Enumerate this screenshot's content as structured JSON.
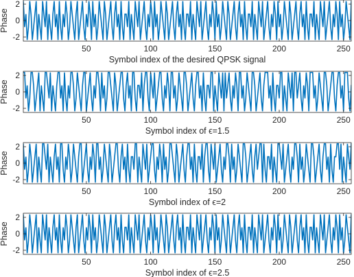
{
  "chart_data": [
    {
      "type": "line",
      "xlabel": "Symbol index of the desired QPSK signal",
      "ylabel": "Phase",
      "xlim": [
        1,
        256
      ],
      "ylim": [
        -2.5,
        2.5
      ],
      "xticks": [
        50,
        100,
        150,
        200,
        250
      ],
      "yticks": [
        -2,
        0,
        2
      ],
      "grid": false,
      "line_color": "#0072BD",
      "y": [
        2.36,
        -0.79,
        0.79,
        -2.36,
        -0.79,
        2.36,
        0.79,
        -2.36,
        -0.79,
        0.79,
        2.36,
        -2.36,
        0.79,
        -0.79,
        -2.36,
        2.36,
        0.79,
        -0.79,
        2.36,
        -2.36,
        0.79,
        -0.79,
        -2.36,
        0.79,
        2.36,
        -0.79,
        0.79,
        -2.36,
        2.36,
        -0.79,
        -2.36,
        0.79,
        -0.79,
        2.36,
        0.79,
        -2.36,
        -0.79,
        2.36,
        0.79,
        -0.79,
        -2.36,
        0.79,
        2.36,
        -2.36,
        -0.79,
        0.79,
        2.36,
        -0.79,
        -2.36,
        0.79,
        -0.79,
        2.36,
        0.79,
        -2.36,
        2.36,
        -0.79,
        0.79,
        -2.36,
        -0.79,
        2.36,
        0.79,
        -0.79,
        -2.36,
        2.36,
        0.79,
        -2.36,
        -0.79,
        0.79,
        2.36,
        -0.79,
        -2.36,
        0.79,
        2.36,
        -0.79,
        0.79,
        -2.36,
        2.36,
        -0.79,
        -2.36,
        0.79,
        0.79,
        -0.79,
        2.36,
        -2.36,
        0.79,
        -0.79,
        -2.36,
        2.36,
        0.79,
        -0.79,
        2.36,
        -2.36,
        -0.79,
        0.79,
        2.36,
        -0.79,
        -2.36,
        0.79,
        -0.79,
        2.36,
        0.79,
        -2.36,
        2.36,
        -0.79,
        0.79,
        -2.36,
        -0.79,
        2.36,
        0.79,
        -0.79,
        -2.36,
        2.36,
        0.79,
        -2.36,
        -0.79,
        0.79,
        2.36,
        -0.79,
        -2.36,
        0.79,
        2.36,
        -0.79,
        0.79,
        -2.36,
        2.36,
        -0.79,
        -2.36,
        0.79,
        0.79,
        -0.79,
        2.36,
        -2.36,
        0.79,
        -0.79,
        -2.36,
        2.36,
        0.79,
        -0.79,
        2.36,
        -2.36,
        -0.79,
        0.79,
        2.36,
        -0.79,
        -2.36,
        0.79,
        -0.79,
        2.36,
        0.79,
        -2.36,
        2.36,
        -0.79,
        0.79,
        -2.36,
        -0.79,
        2.36,
        0.79,
        -0.79,
        -2.36,
        2.36,
        0.79,
        -2.36,
        -0.79,
        0.79,
        2.36,
        -0.79,
        -2.36,
        0.79,
        2.36,
        -0.79,
        0.79,
        -2.36,
        2.36,
        -0.79,
        -2.36,
        0.79,
        0.79,
        -0.79,
        2.36,
        -2.36,
        0.79,
        -0.79,
        -2.36,
        2.36,
        0.79,
        -0.79,
        2.36,
        -2.36,
        -0.79,
        0.79,
        2.36,
        -0.79,
        -2.36,
        0.79,
        -0.79,
        2.36,
        0.79,
        -2.36,
        2.36,
        -0.79,
        0.79,
        -2.36,
        -0.79,
        2.36,
        0.79,
        -0.79,
        -2.36,
        2.36,
        0.79,
        -2.36,
        -0.79,
        0.79,
        2.36,
        -0.79,
        -2.36,
        0.79,
        2.36,
        -0.79,
        0.79,
        -2.36,
        2.36,
        -0.79,
        -2.36,
        0.79,
        0.79,
        -0.79,
        2.36,
        -2.36,
        0.79,
        -0.79,
        -2.36,
        2.36,
        0.79,
        -0.79,
        2.36,
        -2.36,
        -0.79,
        0.79,
        2.36,
        -0.79,
        -2.36,
        0.79,
        -0.79,
        2.36,
        0.79,
        -2.36,
        2.36,
        -0.79,
        0.79,
        -2.36,
        -0.79,
        2.36,
        0.79,
        -0.79,
        -2.36,
        2.36,
        0.79,
        -2.36,
        -0.79,
        0.79,
        2.36,
        -0.79,
        -2.36,
        0.79
      ]
    },
    {
      "type": "line",
      "xlabel": "Symbol index of ϵ=1.5",
      "ylabel": "Phase",
      "xlim": [
        1,
        256
      ],
      "ylim": [
        -2.5,
        2.5
      ],
      "xticks": [
        50,
        100,
        150,
        200,
        250
      ],
      "yticks": [
        -2,
        0,
        2
      ],
      "grid": false,
      "line_color": "#0072BD",
      "y": [
        2.36,
        2.36,
        -0.79,
        0.79,
        -2.36,
        -0.79,
        2.36,
        2.36,
        0.79,
        -2.36,
        -0.79,
        0.79,
        2.36,
        -2.36,
        0.79,
        -0.79,
        -2.36,
        2.36,
        2.36,
        0.79,
        -0.79,
        2.36,
        -2.36,
        0.79,
        -0.79,
        -2.36,
        0.79,
        2.36,
        2.36,
        -0.79,
        0.79,
        -2.36,
        2.36,
        -0.79,
        -2.36,
        0.79,
        -0.79,
        2.36,
        2.36,
        0.79,
        -2.36,
        -0.79,
        2.36,
        0.79,
        -0.79,
        -2.36,
        0.79,
        2.36,
        2.36,
        -2.36,
        -0.79,
        0.79,
        2.36,
        -0.79,
        -2.36,
        0.79,
        -0.79,
        2.36,
        2.36,
        0.79,
        -2.36,
        2.36,
        -0.79,
        0.79,
        -2.36,
        -0.79,
        2.36,
        2.36,
        0.79,
        -0.79,
        -2.36,
        2.36,
        0.79,
        -2.36,
        -0.79,
        0.79,
        2.36,
        2.36,
        -0.79,
        -2.36,
        0.79,
        2.36,
        -0.79,
        0.79,
        -2.36,
        2.36,
        2.36,
        -0.79,
        -2.36,
        0.79,
        0.79,
        -0.79,
        2.36,
        -2.36,
        0.79,
        2.36,
        2.36,
        -0.79,
        -2.36,
        2.36,
        0.79,
        -0.79,
        2.36,
        -2.36,
        -0.79,
        0.79,
        2.36,
        2.36,
        -0.79,
        -2.36,
        0.79,
        -0.79,
        2.36,
        0.79,
        -2.36,
        2.36,
        2.36,
        -0.79,
        0.79,
        -2.36,
        -0.79,
        2.36,
        0.79,
        -0.79,
        -2.36,
        2.36,
        2.36,
        0.79,
        -2.36,
        -0.79,
        0.79,
        2.36,
        -0.79,
        -2.36,
        0.79,
        2.36,
        2.36,
        -0.79,
        0.79,
        -2.36,
        2.36,
        -0.79,
        -2.36,
        0.79,
        0.79,
        -0.79,
        2.36,
        2.36,
        -2.36,
        0.79,
        -0.79,
        -2.36,
        2.36,
        0.79,
        -0.79,
        2.36,
        -2.36,
        2.36,
        -0.79,
        0.79,
        2.36,
        -0.79,
        -2.36,
        0.79,
        -0.79,
        2.36,
        0.79,
        -2.36,
        2.36,
        2.36,
        -0.79,
        0.79,
        -2.36,
        -0.79,
        2.36,
        0.79,
        -0.79,
        -2.36,
        2.36,
        2.36,
        0.79,
        -2.36,
        -0.79,
        0.79,
        2.36,
        -0.79,
        -2.36,
        0.79,
        2.36,
        2.36,
        2.36,
        -0.79,
        0.79,
        -2.36,
        2.36,
        -0.79,
        -2.36,
        0.79,
        0.79,
        -0.79,
        2.36,
        2.36,
        -2.36,
        0.79,
        -0.79,
        -2.36,
        2.36,
        0.79,
        -0.79,
        2.36,
        -2.36,
        2.36,
        2.36,
        -0.79,
        0.79,
        2.36,
        -0.79,
        -2.36,
        0.79,
        -0.79,
        2.36,
        0.79,
        -2.36,
        2.36,
        2.36,
        2.36,
        -0.79,
        0.79,
        -2.36,
        -0.79,
        2.36,
        0.79,
        -0.79,
        -2.36,
        2.36,
        2.36,
        0.79,
        -2.36,
        -0.79,
        0.79,
        2.36,
        2.36,
        -0.79,
        -2.36,
        0.79,
        2.36,
        2.36,
        -0.79,
        0.79,
        -2.36,
        2.36,
        2.36,
        2.36,
        -0.79,
        -2.36,
        0.79,
        0.79,
        -0.79,
        2.36,
        2.36
      ]
    },
    {
      "type": "line",
      "xlabel": "Symbol index of ϵ=2",
      "ylabel": "Phase",
      "xlim": [
        1,
        256
      ],
      "ylim": [
        -2.5,
        2.5
      ],
      "xticks": [
        50,
        100,
        150,
        200,
        250
      ],
      "yticks": [
        -2,
        0,
        2
      ],
      "grid": false,
      "line_color": "#0072BD",
      "y": [
        2.36,
        -0.79,
        0.79,
        -2.36,
        -0.79,
        2.36,
        0.79,
        -2.36,
        -0.79,
        0.79,
        2.36,
        -2.36,
        0.79,
        -0.79,
        -2.36,
        2.36,
        2.36,
        0.79,
        -0.79,
        2.36,
        -2.36,
        0.79,
        -0.79,
        -2.36,
        0.79,
        2.36,
        -0.79,
        0.79,
        -2.36,
        2.36,
        2.36,
        -0.79,
        -2.36,
        0.79,
        -0.79,
        2.36,
        0.79,
        -2.36,
        -0.79,
        2.36,
        0.79,
        -0.79,
        -2.36,
        0.79,
        2.36,
        2.36,
        -2.36,
        -0.79,
        0.79,
        2.36,
        -0.79,
        -2.36,
        0.79,
        -0.79,
        2.36,
        0.79,
        -2.36,
        2.36,
        2.36,
        -0.79,
        0.79,
        -2.36,
        -0.79,
        2.36,
        0.79,
        -0.79,
        -2.36,
        2.36,
        0.79,
        -2.36,
        -0.79,
        0.79,
        2.36,
        2.36,
        -0.79,
        -2.36,
        0.79,
        2.36,
        -0.79,
        0.79,
        -2.36,
        2.36,
        -0.79,
        -2.36,
        0.79,
        0.79,
        -0.79,
        2.36,
        2.36,
        -2.36,
        0.79,
        -0.79,
        -2.36,
        2.36,
        0.79,
        -0.79,
        2.36,
        -2.36,
        -0.79,
        0.79,
        2.36,
        2.36,
        -0.79,
        -2.36,
        0.79,
        -0.79,
        2.36,
        0.79,
        -2.36,
        2.36,
        -0.79,
        0.79,
        -2.36,
        -0.79,
        2.36,
        2.36,
        0.79,
        -0.79,
        -2.36,
        2.36,
        0.79,
        -2.36,
        -0.79,
        0.79,
        2.36,
        -0.79,
        -2.36,
        0.79,
        2.36,
        2.36,
        -0.79,
        0.79,
        -2.36,
        2.36,
        -0.79,
        -2.36,
        0.79,
        0.79,
        -0.79,
        2.36,
        -2.36,
        0.79,
        2.36,
        2.36,
        -0.79,
        -2.36,
        2.36,
        0.79,
        -0.79,
        2.36,
        -2.36,
        -0.79,
        0.79,
        2.36,
        -0.79,
        -2.36,
        0.79,
        -0.79,
        2.36,
        2.36,
        0.79,
        -2.36,
        2.36,
        -0.79,
        0.79,
        -2.36,
        -0.79,
        2.36,
        0.79,
        -0.79,
        -2.36,
        2.36,
        2.36,
        0.79,
        -2.36,
        -0.79,
        0.79,
        2.36,
        -0.79,
        -2.36,
        0.79,
        2.36,
        -0.79,
        0.79,
        2.36,
        2.36,
        -2.36,
        2.36,
        -0.79,
        -2.36,
        0.79,
        0.79,
        -0.79,
        2.36,
        -2.36,
        0.79,
        -0.79,
        -2.36,
        2.36,
        2.36,
        0.79,
        -0.79,
        2.36,
        -2.36,
        -0.79,
        0.79,
        2.36,
        -0.79,
        -2.36,
        0.79,
        -0.79,
        2.36,
        2.36,
        0.79,
        -2.36,
        2.36,
        -0.79,
        0.79,
        -2.36,
        -0.79,
        2.36,
        0.79,
        -0.79,
        -2.36,
        2.36,
        2.36,
        0.79,
        -2.36,
        -0.79,
        0.79,
        2.36,
        -0.79,
        -2.36,
        0.79,
        2.36,
        2.36,
        -0.79,
        0.79,
        -2.36,
        2.36,
        -0.79,
        -2.36,
        0.79,
        0.79,
        2.36,
        2.36,
        -0.79,
        2.36,
        -2.36,
        0.79,
        -0.79,
        -2.36,
        2.36,
        0.79,
        -0.79,
        2.36,
        2.36
      ]
    },
    {
      "type": "line",
      "xlabel": "Symbol index of ϵ=2.5",
      "ylabel": "Phase",
      "xlim": [
        1,
        256
      ],
      "ylim": [
        -2.5,
        2.5
      ],
      "xticks": [
        50,
        100,
        150,
        200,
        250
      ],
      "yticks": [
        -2,
        0,
        2
      ],
      "grid": false,
      "line_color": "#0072BD",
      "y": [
        2.36,
        -0.79,
        0.79,
        -2.36,
        -0.79,
        2.36,
        0.79,
        -2.36,
        -0.79,
        0.79,
        2.36,
        -2.36,
        0.79,
        -0.79,
        -2.36,
        2.36,
        0.79,
        -0.79,
        2.36,
        -2.36,
        0.79,
        -0.79,
        -2.36,
        0.79,
        2.36,
        -0.79,
        0.79,
        -2.36,
        2.36,
        -0.79,
        -2.36,
        0.79,
        -0.79,
        2.36,
        0.79,
        -2.36,
        -0.79,
        2.36,
        0.79,
        -0.79,
        -2.36,
        0.79,
        2.36,
        -2.36,
        -0.79,
        0.79,
        2.36,
        -0.79,
        -2.36,
        0.79,
        -0.79,
        2.36,
        0.79,
        -2.36,
        2.36,
        -0.79,
        0.79,
        -2.36,
        -0.79,
        2.36,
        0.79,
        -0.79,
        -2.36,
        2.36,
        0.79,
        -2.36,
        -0.79,
        0.79,
        2.36,
        -0.79,
        -2.36,
        0.79,
        2.36,
        -0.79,
        0.79,
        -2.36,
        2.36,
        -0.79,
        -2.36,
        0.79,
        0.79,
        -0.79,
        2.36,
        -2.36,
        0.79,
        -0.79,
        -2.36,
        2.36,
        0.79,
        -0.79,
        2.36,
        -2.36,
        -0.79,
        0.79,
        2.36,
        -0.79,
        -2.36,
        0.79,
        -0.79,
        2.36,
        0.79,
        -2.36,
        2.36,
        -0.79,
        0.79,
        -2.36,
        -0.79,
        2.36,
        0.79,
        -0.79,
        -2.36,
        2.36,
        0.79,
        -2.36,
        -0.79,
        0.79,
        2.36,
        -0.79,
        -2.36,
        0.79,
        2.36,
        -0.79,
        0.79,
        -2.36,
        2.36,
        -0.79,
        -2.36,
        0.79,
        0.79,
        -0.79,
        2.36,
        -2.36,
        0.79,
        -0.79,
        -2.36,
        2.36,
        0.79,
        -0.79,
        2.36,
        -2.36,
        -0.79,
        0.79,
        2.36,
        -0.79,
        -2.36,
        0.79,
        -0.79,
        2.36,
        0.79,
        -2.36,
        2.36,
        -0.79,
        0.79,
        -2.36,
        -0.79,
        2.36,
        0.79,
        -0.79,
        -2.36,
        2.36,
        0.79,
        -2.36,
        -0.79,
        0.79,
        2.36,
        -0.79,
        -2.36,
        0.79,
        2.36,
        -0.79,
        0.79,
        -2.36,
        2.36,
        -0.79,
        -2.36,
        0.79,
        0.79,
        -0.79,
        2.36,
        -2.36,
        0.79,
        -0.79,
        -2.36,
        2.36,
        0.79,
        -0.79,
        2.36,
        -2.36,
        -0.79,
        0.79,
        2.36,
        -0.79,
        -2.36,
        0.79,
        -0.79,
        2.36,
        0.79,
        -2.36,
        2.36,
        -0.79,
        0.79,
        -2.36,
        -0.79,
        2.36,
        0.79,
        -0.79,
        -2.36,
        2.36,
        0.79,
        -2.36,
        -0.79,
        0.79,
        2.36,
        -0.79,
        -2.36,
        0.79,
        2.36,
        -0.79,
        0.79,
        -2.36,
        2.36,
        -0.79,
        -2.36,
        0.79,
        0.79,
        -0.79,
        2.36,
        -2.36,
        0.79,
        -0.79,
        -2.36,
        2.36,
        0.79,
        -0.79,
        2.36,
        -2.36,
        -0.79,
        0.79,
        2.36,
        -0.79,
        -2.36,
        0.79,
        -0.79,
        2.36,
        0.79,
        -2.36,
        2.36,
        -0.79,
        0.79,
        -2.36,
        -0.79,
        2.36,
        0.79,
        -0.79,
        -2.36,
        2.36,
        0.79,
        -2.36,
        -0.79,
        0.79,
        2.36,
        -0.79,
        -2.36,
        0.79
      ]
    }
  ]
}
